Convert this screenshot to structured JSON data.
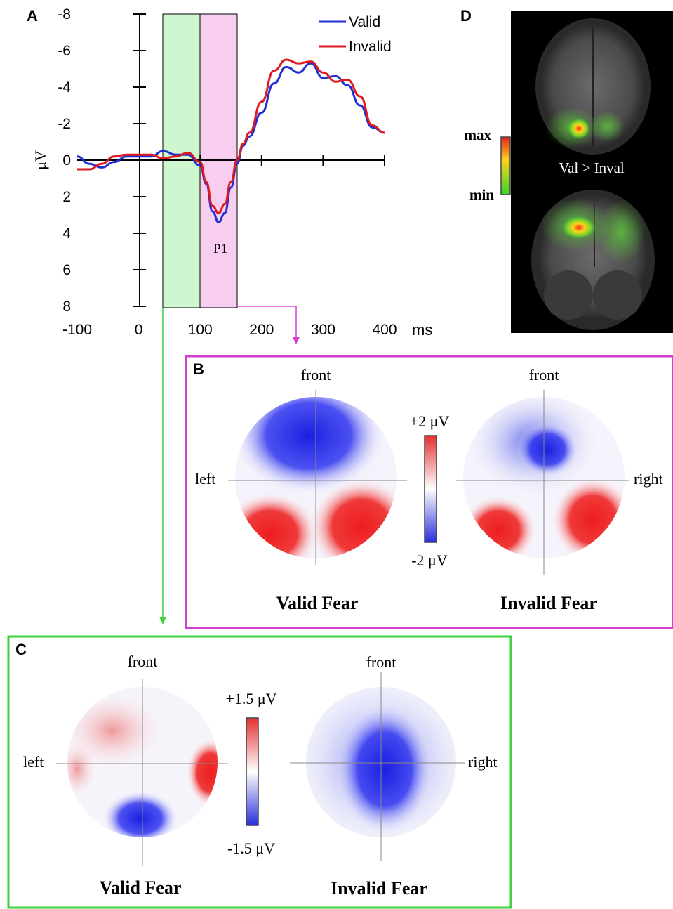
{
  "panels": {
    "a": {
      "letter": "A",
      "y_axis_label": "μV",
      "x_unit": "ms",
      "y_ticks": [
        "-8",
        "-6",
        "-4",
        "-2",
        "0",
        "2",
        "4",
        "6",
        "8"
      ],
      "x_ticks": [
        "-100",
        "0",
        "100",
        "200",
        "300",
        "400"
      ],
      "peak_label": "P1",
      "legend": [
        "Valid",
        "Invalid"
      ]
    },
    "b": {
      "letter": "B",
      "front_label_left": "front",
      "front_label_right": "front",
      "left_label": "left",
      "right_label": "right",
      "scale_max": "+2 μV",
      "scale_min": "-2 μV",
      "map_left_title": "Valid Fear",
      "map_right_title": "Invalid Fear"
    },
    "c": {
      "letter": "C",
      "front_label_left": "front",
      "front_label_right": "front",
      "left_label": "left",
      "right_label": "right",
      "scale_max": "+1.5 μV",
      "scale_min": "-1.5 μV",
      "map_left_title": "Valid Fear",
      "map_right_title": "Invalid Fear"
    },
    "d": {
      "letter": "D",
      "scale_max": "max",
      "scale_min": "min",
      "contrast_label": "Val > Inval"
    }
  },
  "colors": {
    "valid": "#1f2fd1",
    "invalid": "#e0191f",
    "green_window": "#cff7cf",
    "pink_window": "#f7cdf0",
    "panel_b_border": "#d53fcf",
    "panel_c_border": "#3cd23c"
  },
  "chart_data": {
    "type": "line",
    "x_unit": "ms",
    "ylabel": "μV",
    "xlim": [
      -100,
      400
    ],
    "ylim": [
      -8,
      8
    ],
    "y_inverted": true,
    "windows_ms": [
      [
        40,
        100
      ],
      [
        100,
        160
      ]
    ],
    "series": [
      {
        "name": "Valid",
        "x": [
          -100,
          -80,
          -60,
          -40,
          -20,
          0,
          20,
          40,
          60,
          80,
          100,
          110,
          120,
          130,
          140,
          150,
          160,
          170,
          180,
          200,
          220,
          240,
          260,
          280,
          300,
          320,
          340,
          360,
          380,
          400
        ],
        "y": [
          -0.2,
          0.2,
          0.4,
          0.1,
          -0.2,
          -0.2,
          -0.2,
          -0.5,
          -0.3,
          -0.3,
          0.3,
          1.3,
          2.8,
          3.4,
          2.9,
          1.5,
          0.2,
          -0.8,
          -1.3,
          -2.6,
          -4.2,
          -5.1,
          -4.8,
          -5.3,
          -4.5,
          -4.6,
          -4.1,
          -3.0,
          -1.8,
          -1.5
        ]
      },
      {
        "name": "Invalid",
        "x": [
          -100,
          -80,
          -60,
          -40,
          -20,
          0,
          20,
          40,
          60,
          80,
          100,
          110,
          120,
          130,
          140,
          150,
          160,
          170,
          180,
          200,
          220,
          240,
          260,
          280,
          300,
          320,
          340,
          360,
          380,
          400
        ],
        "y": [
          0.5,
          0.5,
          0.2,
          -0.2,
          -0.3,
          -0.3,
          -0.3,
          -0.1,
          -0.2,
          -0.4,
          0.1,
          1.2,
          2.5,
          2.9,
          2.4,
          1.2,
          0.0,
          -0.9,
          -1.5,
          -3.2,
          -4.9,
          -5.5,
          -5.3,
          -5.4,
          -4.8,
          -4.3,
          -4.4,
          -3.5,
          -1.9,
          -1.5
        ]
      }
    ]
  }
}
